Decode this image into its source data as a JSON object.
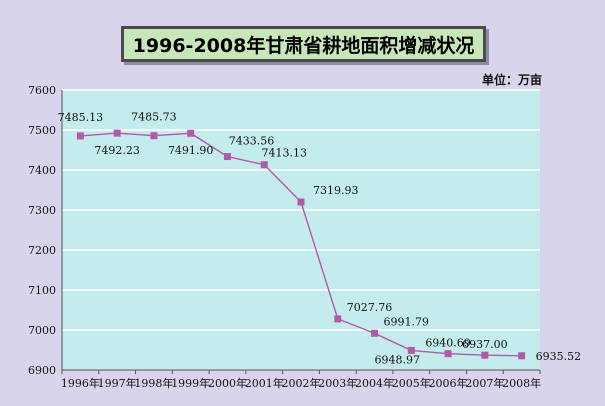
{
  "header": {
    "title": "1996-2008年甘肃省耕地面积增减状况",
    "unit": "单位：万亩"
  },
  "chart_data": {
    "type": "line",
    "title": "1996-2008年甘肃省耕地面积增减状况",
    "unit": "单位：万亩",
    "categories": [
      "1996年",
      "1997年",
      "1998年",
      "1999年",
      "2000年",
      "2001年",
      "2002年",
      "2003年",
      "2004年",
      "2005年",
      "2006年",
      "2007年",
      "2008年"
    ],
    "values": [
      7485.13,
      7492.23,
      7485.73,
      7491.9,
      7433.56,
      7413.13,
      7319.93,
      7027.76,
      6991.79,
      6948.97,
      6940.69,
      6937.0,
      6935.52
    ],
    "labels": [
      "7485.13",
      "7492.23",
      "7485.73",
      "7491.90",
      "7433.56",
      "7413.13",
      "7319.93",
      "7027.76",
      "6991.79",
      "6948.97",
      "6940.69",
      "6937.00",
      "6935.52"
    ],
    "ylim": [
      6900,
      7600
    ],
    "yticks": [
      "6900",
      "7000",
      "7100",
      "7200",
      "7300",
      "7400",
      "7500",
      "7600"
    ],
    "grid": true,
    "colors": {
      "line": "#b05ba6",
      "marker": "#b05ba6",
      "plot_bg": "#c4ecec",
      "grid": "#ffffff"
    }
  }
}
